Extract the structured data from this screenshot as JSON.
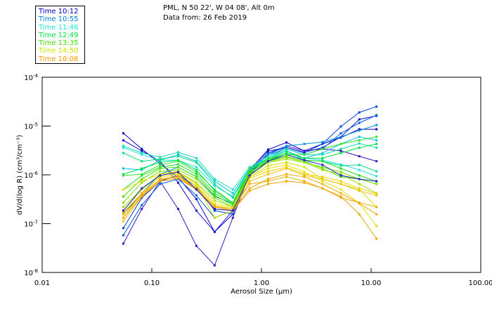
{
  "header": {
    "line1": "PML, N 50 22', W 04 08', Alt 0m",
    "line2": "Data from: 26 Feb 2019"
  },
  "legend": [
    {
      "label": "Time 10:12",
      "color": "#0000cc"
    },
    {
      "label": "Time 10:55",
      "color": "#0080e0"
    },
    {
      "label": "Time 11:46",
      "color": "#20e0e0"
    },
    {
      "label": "Time 12:49",
      "color": "#00e040"
    },
    {
      "label": "Time 13:35",
      "color": "#40e000"
    },
    {
      "label": "Time 14:50",
      "color": "#d0e000"
    },
    {
      "label": "Time 16:08",
      "color": "#f0a000"
    }
  ],
  "chart_data": {
    "type": "line",
    "xscale": "log",
    "yscale": "log",
    "xlabel": "Aerosol Size (µm)",
    "ylabel": "dV/d(log R) (cm³/cm⁻³)",
    "xlim": [
      0.01,
      100
    ],
    "ylim": [
      1e-08,
      0.0001
    ],
    "xticks": [
      {
        "v": 0.01,
        "label": "0.01"
      },
      {
        "v": 0.1,
        "label": "0.10"
      },
      {
        "v": 1,
        "label": "1.00"
      },
      {
        "v": 10,
        "label": "10.00"
      },
      {
        "v": 100,
        "label": "100.00"
      }
    ],
    "yticks": [
      {
        "v": 0.0001,
        "base": "10",
        "exp": "-4"
      },
      {
        "v": 1e-05,
        "base": "10",
        "exp": "-5"
      },
      {
        "v": 1e-06,
        "base": "10",
        "exp": "-6"
      },
      {
        "v": 1e-07,
        "base": "10",
        "exp": "-7"
      },
      {
        "v": 1e-08,
        "base": "10",
        "exp": "-8"
      }
    ],
    "x": [
      0.055,
      0.081,
      0.119,
      0.174,
      0.255,
      0.374,
      0.548,
      0.78,
      1.15,
      1.69,
      2.46,
      3.6,
      5.3,
      7.8,
      11.2
    ],
    "series": [
      {
        "color": "#0000cc",
        "values": [
          7.1e-06,
          3.4e-06,
          1.7e-06,
          8.8e-07,
          3.2e-07,
          6.8e-08,
          1.56e-07,
          1.26e-06,
          3.3e-06,
          4.6e-06,
          3.1e-06,
          4.3e-06,
          5.8e-06,
          8.6e-06,
          8.6e-06
        ]
      },
      {
        "color": "#1010d0",
        "values": [
          5.1e-06,
          3.1e-06,
          1.9e-06,
          6.9e-07,
          1.85e-07,
          6.8e-08,
          1.85e-07,
          1.14e-06,
          3.1e-06,
          3.6e-06,
          2.9e-06,
          3.6e-06,
          6e-06,
          1.37e-05,
          1.62e-05
        ]
      },
      {
        "color": "#4010c0",
        "values": [
          3.9e-08,
          2e-07,
          7.4e-07,
          2e-07,
          3.5e-08,
          1.4e-08,
          1.32e-07,
          1.03e-06,
          2.8e-06,
          3.9e-06,
          3.1e-06,
          3.4e-06,
          3.1e-06,
          2.4e-06,
          1.9e-06
        ]
      },
      {
        "color": "#0040e0",
        "values": [
          8.1e-08,
          3.4e-07,
          7.4e-07,
          9.7e-07,
          5.9e-07,
          1.85e-07,
          1.56e-07,
          9.7e-07,
          2.8e-06,
          3.6e-06,
          2.8e-06,
          4.3e-06,
          9.8e-06,
          1.9e-05,
          2.5e-05
        ]
      },
      {
        "color": "#0060e0",
        "values": [
          5.8e-08,
          2.4e-07,
          6.5e-07,
          8.2e-07,
          3.8e-07,
          1.32e-07,
          1.85e-07,
          1.14e-06,
          2.6e-06,
          3.4e-06,
          2.6e-06,
          3.4e-06,
          7.1e-06,
          1.16e-05,
          1.67e-05
        ]
      },
      {
        "color": "#0090e0",
        "values": [
          1.56e-07,
          4.2e-07,
          1.03e-06,
          1.44e-06,
          9.1e-07,
          3.6e-07,
          2.6e-07,
          1.14e-06,
          2.6e-06,
          3.9e-06,
          4.3e-06,
          4.7e-06,
          6e-06,
          8.1e-06,
          1.05e-05
        ]
      },
      {
        "color": "#10c0e0",
        "values": [
          1.35e-06,
          1.26e-06,
          2e-06,
          2.6e-06,
          1.9e-06,
          7.4e-07,
          4.2e-07,
          1.35e-06,
          2.4e-06,
          3.1e-06,
          2.2e-06,
          2.8e-06,
          4.3e-06,
          6e-06,
          5.1e-06
        ]
      },
      {
        "color": "#20e0e0",
        "values": [
          3.6e-06,
          2.6e-06,
          2e-06,
          2e-06,
          1.44e-06,
          5.9e-07,
          3.6e-07,
          1.35e-06,
          2.2e-06,
          2.8e-06,
          2.2e-06,
          2e-06,
          1.64e-06,
          1.26e-06,
          9.4e-07
        ]
      },
      {
        "color": "#10e0b0",
        "values": [
          3.9e-06,
          2.8e-06,
          2.3e-06,
          2.9e-06,
          2.2e-06,
          8.2e-07,
          5e-07,
          1.44e-06,
          2.4e-06,
          3.4e-06,
          2.6e-06,
          2.6e-06,
          3.4e-06,
          4.4e-06,
          3.6e-06
        ]
      },
      {
        "color": "#00e080",
        "values": [
          2.8e-06,
          1.9e-06,
          2.1e-06,
          2.4e-06,
          1.8e-06,
          6.5e-07,
          3.4e-07,
          1.26e-06,
          2.2e-06,
          3.1e-06,
          2e-06,
          1.9e-06,
          1.54e-06,
          1.6e-06,
          1.18e-06
        ]
      },
      {
        "color": "#00e040",
        "values": [
          1.03e-06,
          1.35e-06,
          1.8e-06,
          2e-06,
          1.26e-06,
          4.7e-07,
          2.7e-07,
          1.18e-06,
          2.1e-06,
          2.8e-06,
          2.2e-06,
          2.2e-06,
          2.8e-06,
          3.6e-06,
          4.3e-06
        ]
      },
      {
        "color": "#20e020",
        "values": [
          5e-07,
          9.7e-07,
          1.44e-06,
          1.64e-06,
          1.03e-06,
          4.2e-07,
          2.6e-07,
          1.1e-06,
          2e-06,
          2.6e-06,
          2e-06,
          1.9e-06,
          1.35e-06,
          9.7e-07,
          7.4e-07
        ]
      },
      {
        "color": "#40e000",
        "values": [
          3.6e-07,
          8.2e-07,
          1.35e-06,
          1.44e-06,
          9.1e-07,
          3.8e-07,
          2.4e-07,
          1.1e-06,
          1.9e-06,
          2.4e-06,
          1.9e-06,
          1.35e-06,
          9.1e-07,
          8.2e-07,
          6.5e-07
        ]
      },
      {
        "color": "#80e000",
        "values": [
          2.7e-07,
          6.9e-07,
          1.18e-06,
          1.26e-06,
          8.2e-07,
          3.4e-07,
          2.2e-07,
          1.03e-06,
          1.8e-06,
          2.3e-06,
          1.8e-06,
          1.44e-06,
          1.14e-06,
          8.2e-07,
          6.5e-07
        ]
      },
      {
        "color": "#a0e000",
        "values": [
          2.2e-07,
          5e-07,
          1.03e-06,
          1.18e-06,
          6.9e-07,
          3e-07,
          2.2e-07,
          9.7e-07,
          1.8e-06,
          2.1e-06,
          1.8e-06,
          1.26e-06,
          1.03e-06,
          6.5e-07,
          4.2e-07
        ]
      },
      {
        "color": "#d0e000",
        "values": [
          1.85e-07,
          5e-07,
          9.7e-07,
          1.1e-06,
          6.5e-07,
          1.32e-07,
          1.85e-07,
          9.1e-07,
          1.54e-06,
          1.8e-06,
          1.44e-06,
          8.2e-07,
          6.5e-07,
          5e-07,
          2.2e-07
        ]
      },
      {
        "color": "#e8e000",
        "values": [
          5e-07,
          7.4e-07,
          1.03e-06,
          1.18e-06,
          6.5e-07,
          2.6e-07,
          2.1e-07,
          9.1e-07,
          1.35e-06,
          1.6e-06,
          1.14e-06,
          7.4e-07,
          5e-07,
          2.6e-07,
          8.9e-08
        ]
      },
      {
        "color": "#f0d000",
        "values": [
          1.32e-07,
          4.2e-07,
          9.1e-07,
          1.03e-06,
          5.9e-07,
          2.4e-07,
          2e-07,
          8.5e-07,
          1.18e-06,
          1.44e-06,
          1.03e-06,
          9.1e-07,
          7.4e-07,
          5.3e-07,
          4.1e-07
        ]
      },
      {
        "color": "#f0c000",
        "values": [
          1.12e-07,
          3.6e-07,
          8.2e-07,
          9.7e-07,
          5.3e-07,
          2.2e-07,
          1.85e-07,
          7.4e-07,
          1.03e-06,
          1.35e-06,
          9.7e-07,
          8.2e-07,
          6.5e-07,
          4.7e-07,
          3.8e-07
        ]
      },
      {
        "color": "#f0b000",
        "values": [
          1.56e-07,
          3.8e-07,
          7.9e-07,
          9.1e-07,
          5.3e-07,
          2.25e-07,
          2e-07,
          6.5e-07,
          7.4e-07,
          9.1e-07,
          7.4e-07,
          5.3e-07,
          3.4e-07,
          2.7e-07,
          2.2e-07
        ]
      },
      {
        "color": "#f0a800",
        "values": [
          1.73e-07,
          4.1e-07,
          7.9e-07,
          9.1e-07,
          5e-07,
          2e-07,
          1.85e-07,
          5.3e-07,
          8.2e-07,
          1.03e-06,
          9.1e-07,
          6.5e-07,
          4.2e-07,
          2.6e-07,
          1.56e-07
        ]
      },
      {
        "color": "#f0a000",
        "values": [
          1.32e-07,
          3.6e-07,
          7.4e-07,
          8.5e-07,
          5e-07,
          2.2e-07,
          1.85e-07,
          4.7e-07,
          6.5e-07,
          7.4e-07,
          6.9e-07,
          5.3e-07,
          3.6e-07,
          1.56e-07,
          4.9e-08
        ]
      },
      {
        "color": "#2020c0",
        "values": [
          1.85e-07,
          5.3e-07,
          9.7e-07,
          1.14e-06,
          5e-07,
          2e-07,
          1.85e-07,
          9.7e-07,
          1.9e-06,
          2.6e-06,
          2e-06,
          1.6e-06,
          9.7e-07,
          8.2e-07,
          7.4e-07
        ]
      },
      {
        "color": "#30e030",
        "values": [
          9.7e-07,
          1.03e-06,
          1.6e-06,
          1.9e-06,
          1.14e-06,
          5e-07,
          2.7e-07,
          1.35e-06,
          2.1e-06,
          2.6e-06,
          2.6e-06,
          3.4e-06,
          4.3e-06,
          5.1e-06,
          6e-06
        ]
      }
    ]
  }
}
